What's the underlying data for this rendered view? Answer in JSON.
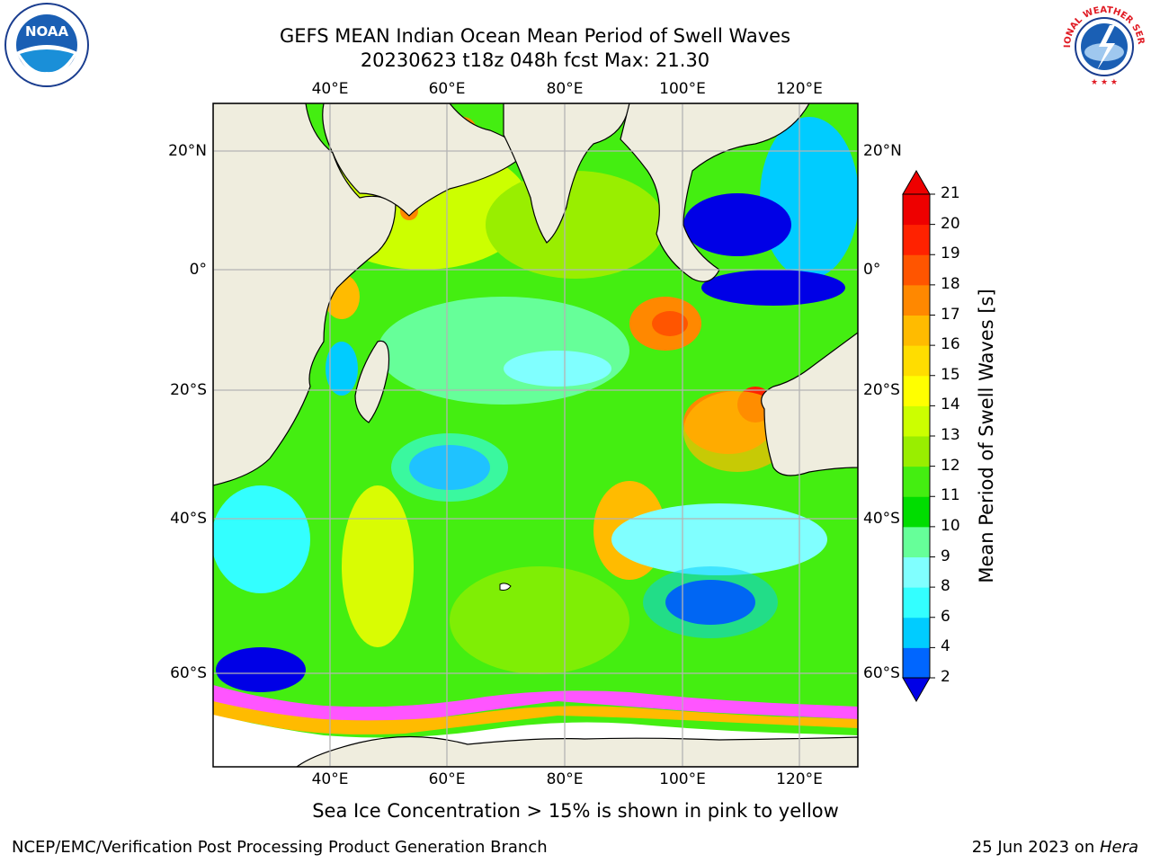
{
  "title_line1": "GEFS MEAN Indian Ocean Mean Period of Swell Waves",
  "title_line2": "20230623 t18z 048h fcst   Max: 21.30",
  "lon_labels": [
    "40°E",
    "60°E",
    "80°E",
    "100°E",
    "120°E"
  ],
  "lat_labels": [
    "20°N",
    "0°",
    "20°S",
    "40°S",
    "60°S"
  ],
  "colorbar": {
    "label": "Mean Period of Swell Waves [s]",
    "ticks": [
      "2",
      "4",
      "6",
      "8",
      "9",
      "10",
      "11",
      "12",
      "13",
      "14",
      "15",
      "16",
      "17",
      "18",
      "19",
      "20",
      "21"
    ],
    "colors": [
      "#0000e6",
      "#0066ff",
      "#00ccff",
      "#33ffff",
      "#80ffff",
      "#66ff99",
      "#00dd00",
      "#44ee11",
      "#99ee00",
      "#ccff00",
      "#ffff00",
      "#ffdd00",
      "#ffbb00",
      "#ff8800",
      "#ff5500",
      "#ff2200",
      "#ee0000"
    ]
  },
  "sea_ice_note": "Sea Ice Concentration > 15% is shown in pink to yellow",
  "footer_left": "NCEP/EMC/Verification Post Processing Product Generation Branch",
  "footer_right_date": "25 Jun 2023 on ",
  "footer_right_host": "Hera",
  "logo_noaa": "NOAA",
  "logo_nws": "NATIONAL WEATHER SERVICE"
}
